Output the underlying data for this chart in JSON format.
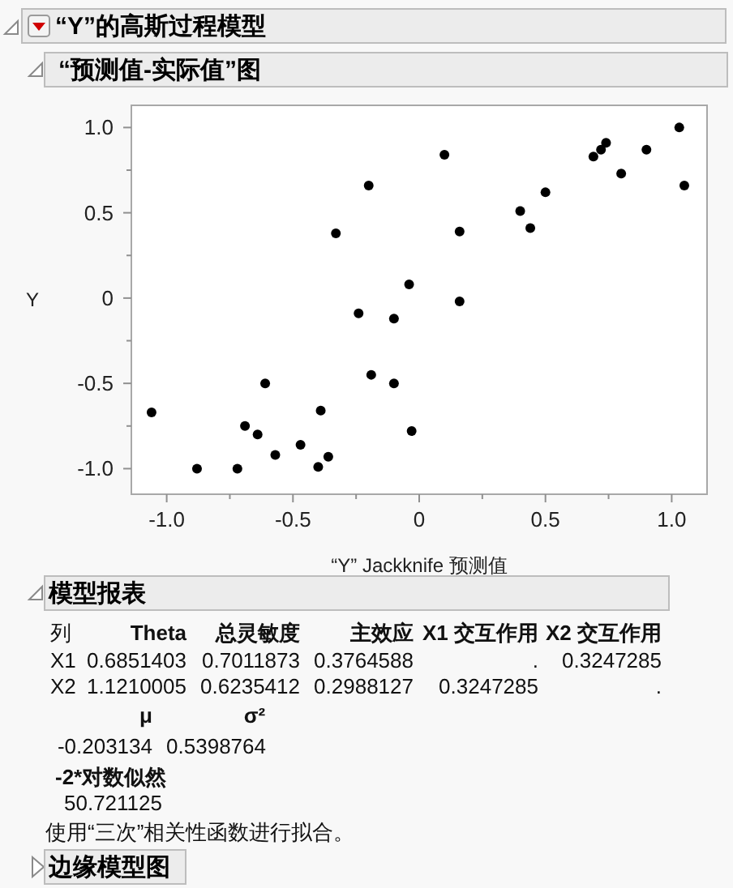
{
  "chart_data": {
    "type": "scatter",
    "title": "“Y”的高斯过程模型",
    "subtitle": "“预测值-实际值”图",
    "xlabel": "“Y” Jackknife 预测值",
    "ylabel": "Y",
    "x": [
      -1.06,
      -0.88,
      -0.72,
      -0.69,
      -0.64,
      -0.61,
      -0.57,
      -0.47,
      -0.4,
      -0.39,
      -0.36,
      -0.33,
      -0.24,
      -0.2,
      -0.19,
      -0.1,
      -0.1,
      -0.04,
      -0.03,
      0.1,
      0.16,
      0.16,
      0.4,
      0.44,
      0.5,
      0.69,
      0.72,
      0.74,
      0.8,
      0.9,
      1.03,
      1.05
    ],
    "series": [
      {
        "color": "#000000",
        "values": [
          -0.67,
          -1.0,
          -1.0,
          -0.75,
          -0.8,
          -0.5,
          -0.92,
          -0.86,
          -0.99,
          -0.66,
          -0.93,
          0.38,
          -0.09,
          0.66,
          -0.45,
          -0.12,
          -0.5,
          0.08,
          -0.78,
          0.84,
          -0.02,
          0.39,
          0.51,
          0.41,
          0.62,
          0.83,
          0.87,
          0.91,
          0.73,
          0.87,
          1.0,
          0.66
        ]
      }
    ],
    "marker": "circle",
    "xlim": [
      -1.14,
      1.14
    ],
    "ylim": [
      -1.15,
      1.13
    ],
    "xticks": [
      {
        "value": -1,
        "label": "-1.0"
      },
      {
        "value": -0.75,
        "label": null
      },
      {
        "value": -0.5,
        "label": "-0.5"
      },
      {
        "value": -0.25,
        "label": null
      },
      0,
      {
        "value": 0.25,
        "label": null
      },
      {
        "value": 0.5,
        "label": "0.5"
      },
      {
        "value": 0.75,
        "label": null
      },
      {
        "value": 1,
        "label": "1.0"
      }
    ],
    "yticks": [
      {
        "value": -1,
        "label": "-1.0"
      },
      {
        "value": -0.75,
        "label": null
      },
      {
        "value": -0.5,
        "label": "-0.5"
      },
      {
        "value": -0.25,
        "label": null
      },
      0,
      {
        "value": 0.25,
        "label": null
      },
      {
        "value": 0.5,
        "label": "0.5"
      },
      {
        "value": 0.75,
        "label": null
      },
      {
        "value": 1,
        "label": "1.0"
      }
    ],
    "annotations": [
      "模型报表",
      "列",
      "Theta",
      "总灵敏度",
      "主效应",
      "X1 交互作用",
      "X2 交互作用",
      "X1",
      "0.6851403",
      "0.7011873",
      "0.3764588",
      ".",
      "0.3247285",
      "X2",
      "1.1210005",
      "0.6235412",
      "0.2988127",
      "0.3247285",
      ".",
      "μ",
      "σ²",
      "-0.203134",
      "0.5398764",
      "-2*对数似然",
      "50.721125",
      "使用“三次”相关性函数进行拟合。",
      "边缘模型图"
    ]
  }
}
